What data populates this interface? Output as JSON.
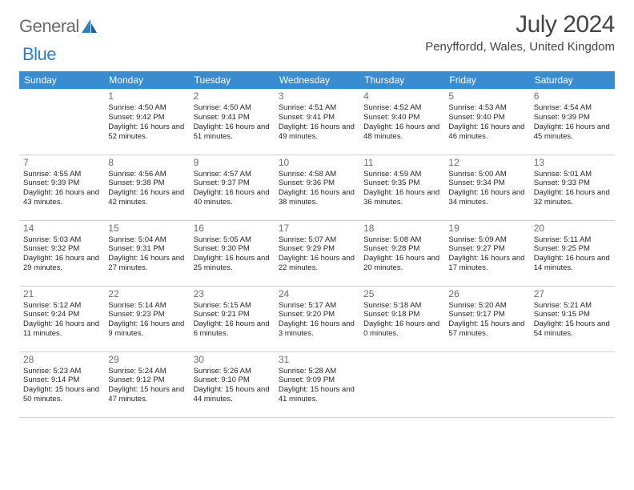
{
  "brand": {
    "part1": "General",
    "part2": "Blue",
    "accent": "#2f7fc1",
    "text_color": "#6a6a6a"
  },
  "title": "July 2024",
  "location": "Penyffordd, Wales, United Kingdom",
  "header_bg": "#3a8cd0",
  "header_fg": "#ffffff",
  "divider_color": "#4b4b4b",
  "cell_divider": "#cfcfcf",
  "dow": [
    "Sunday",
    "Monday",
    "Tuesday",
    "Wednesday",
    "Thursday",
    "Friday",
    "Saturday"
  ],
  "start_offset": 1,
  "days": [
    {
      "n": 1,
      "sr": "4:50 AM",
      "ss": "9:42 PM",
      "dl": "16 hours and 52 minutes."
    },
    {
      "n": 2,
      "sr": "4:50 AM",
      "ss": "9:41 PM",
      "dl": "16 hours and 51 minutes."
    },
    {
      "n": 3,
      "sr": "4:51 AM",
      "ss": "9:41 PM",
      "dl": "16 hours and 49 minutes."
    },
    {
      "n": 4,
      "sr": "4:52 AM",
      "ss": "9:40 PM",
      "dl": "16 hours and 48 minutes."
    },
    {
      "n": 5,
      "sr": "4:53 AM",
      "ss": "9:40 PM",
      "dl": "16 hours and 46 minutes."
    },
    {
      "n": 6,
      "sr": "4:54 AM",
      "ss": "9:39 PM",
      "dl": "16 hours and 45 minutes."
    },
    {
      "n": 7,
      "sr": "4:55 AM",
      "ss": "9:39 PM",
      "dl": "16 hours and 43 minutes."
    },
    {
      "n": 8,
      "sr": "4:56 AM",
      "ss": "9:38 PM",
      "dl": "16 hours and 42 minutes."
    },
    {
      "n": 9,
      "sr": "4:57 AM",
      "ss": "9:37 PM",
      "dl": "16 hours and 40 minutes."
    },
    {
      "n": 10,
      "sr": "4:58 AM",
      "ss": "9:36 PM",
      "dl": "16 hours and 38 minutes."
    },
    {
      "n": 11,
      "sr": "4:59 AM",
      "ss": "9:35 PM",
      "dl": "16 hours and 36 minutes."
    },
    {
      "n": 12,
      "sr": "5:00 AM",
      "ss": "9:34 PM",
      "dl": "16 hours and 34 minutes."
    },
    {
      "n": 13,
      "sr": "5:01 AM",
      "ss": "9:33 PM",
      "dl": "16 hours and 32 minutes."
    },
    {
      "n": 14,
      "sr": "5:03 AM",
      "ss": "9:32 PM",
      "dl": "16 hours and 29 minutes."
    },
    {
      "n": 15,
      "sr": "5:04 AM",
      "ss": "9:31 PM",
      "dl": "16 hours and 27 minutes."
    },
    {
      "n": 16,
      "sr": "5:05 AM",
      "ss": "9:30 PM",
      "dl": "16 hours and 25 minutes."
    },
    {
      "n": 17,
      "sr": "5:07 AM",
      "ss": "9:29 PM",
      "dl": "16 hours and 22 minutes."
    },
    {
      "n": 18,
      "sr": "5:08 AM",
      "ss": "9:28 PM",
      "dl": "16 hours and 20 minutes."
    },
    {
      "n": 19,
      "sr": "5:09 AM",
      "ss": "9:27 PM",
      "dl": "16 hours and 17 minutes."
    },
    {
      "n": 20,
      "sr": "5:11 AM",
      "ss": "9:25 PM",
      "dl": "16 hours and 14 minutes."
    },
    {
      "n": 21,
      "sr": "5:12 AM",
      "ss": "9:24 PM",
      "dl": "16 hours and 11 minutes."
    },
    {
      "n": 22,
      "sr": "5:14 AM",
      "ss": "9:23 PM",
      "dl": "16 hours and 9 minutes."
    },
    {
      "n": 23,
      "sr": "5:15 AM",
      "ss": "9:21 PM",
      "dl": "16 hours and 6 minutes."
    },
    {
      "n": 24,
      "sr": "5:17 AM",
      "ss": "9:20 PM",
      "dl": "16 hours and 3 minutes."
    },
    {
      "n": 25,
      "sr": "5:18 AM",
      "ss": "9:18 PM",
      "dl": "16 hours and 0 minutes."
    },
    {
      "n": 26,
      "sr": "5:20 AM",
      "ss": "9:17 PM",
      "dl": "15 hours and 57 minutes."
    },
    {
      "n": 27,
      "sr": "5:21 AM",
      "ss": "9:15 PM",
      "dl": "15 hours and 54 minutes."
    },
    {
      "n": 28,
      "sr": "5:23 AM",
      "ss": "9:14 PM",
      "dl": "15 hours and 50 minutes."
    },
    {
      "n": 29,
      "sr": "5:24 AM",
      "ss": "9:12 PM",
      "dl": "15 hours and 47 minutes."
    },
    {
      "n": 30,
      "sr": "5:26 AM",
      "ss": "9:10 PM",
      "dl": "15 hours and 44 minutes."
    },
    {
      "n": 31,
      "sr": "5:28 AM",
      "ss": "9:09 PM",
      "dl": "15 hours and 41 minutes."
    }
  ],
  "labels": {
    "sunrise": "Sunrise: ",
    "sunset": "Sunset: ",
    "daylight": "Daylight: "
  }
}
